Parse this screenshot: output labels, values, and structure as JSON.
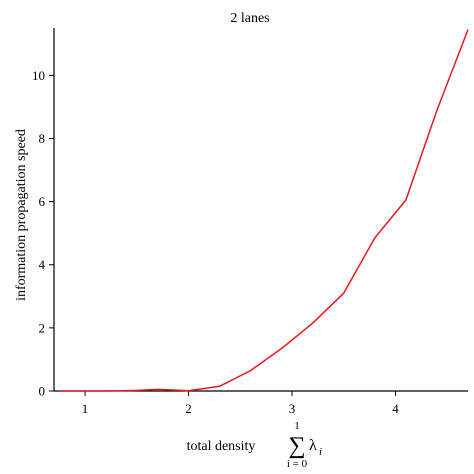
{
  "chart_data": {
    "type": "line",
    "title": "2 lanes",
    "xlabel": "total density",
    "xlabel_math": {
      "operator": "∑",
      "upper": "1",
      "lower": "i = 0",
      "term": "λ",
      "subscript": "i"
    },
    "ylabel": "information propagation speed",
    "xlim": [
      0.7,
      4.7
    ],
    "ylim": [
      0,
      11.5
    ],
    "xticks": [
      1,
      2,
      3,
      4
    ],
    "yticks": [
      0,
      2,
      4,
      6,
      8,
      10
    ],
    "grid": false,
    "series": [
      {
        "color": "#e8191e",
        "x": [
          0.75,
          1.2,
          1.5,
          1.7,
          1.8,
          2.0,
          2.3,
          2.6,
          2.9,
          3.2,
          3.5,
          3.8,
          4.1,
          4.4,
          4.7
        ],
        "y": [
          0,
          0,
          0.02,
          0.05,
          0.04,
          0.01,
          0.15,
          0.65,
          1.35,
          2.15,
          3.1,
          4.85,
          6.05,
          8.9,
          11.45
        ]
      }
    ]
  }
}
